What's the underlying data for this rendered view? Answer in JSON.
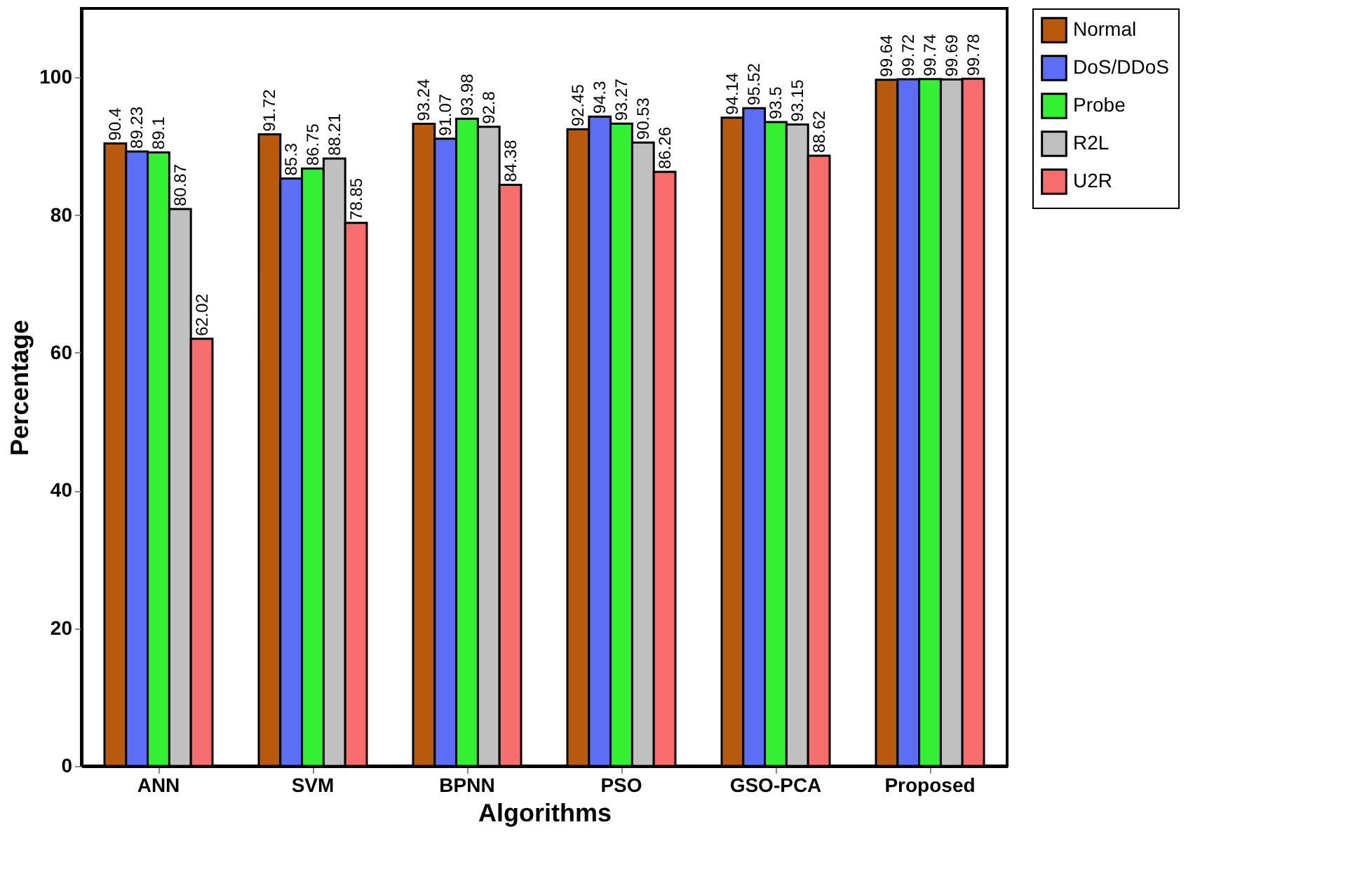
{
  "chart_data": {
    "type": "bar",
    "xlabel": "Algorithms",
    "ylabel": "Percentage",
    "categories": [
      "ANN",
      "SVM",
      "BPNN",
      "PSO",
      "GSO-PCA",
      "Proposed"
    ],
    "series": [
      {
        "name": "Normal",
        "color": "#b85a0d",
        "values": [
          90.4,
          91.72,
          93.24,
          92.45,
          94.14,
          99.64
        ]
      },
      {
        "name": "DoS/DDoS",
        "color": "#5b6ef5",
        "values": [
          89.23,
          85.3,
          91.07,
          94.3,
          95.52,
          99.72
        ]
      },
      {
        "name": "Probe",
        "color": "#33f033",
        "values": [
          89.1,
          86.75,
          93.98,
          93.27,
          93.5,
          99.74
        ]
      },
      {
        "name": "R2L",
        "color": "#c0c0c0",
        "values": [
          80.87,
          88.21,
          92.8,
          90.53,
          93.15,
          99.69
        ]
      },
      {
        "name": "U2R",
        "color": "#f86e6e",
        "values": [
          62.02,
          78.85,
          84.38,
          86.26,
          88.62,
          99.78
        ]
      }
    ],
    "ylim": [
      0,
      110
    ],
    "yticks": [
      0,
      20,
      40,
      60,
      80,
      100
    ],
    "grid": false,
    "legend": "right",
    "data_labels": true
  }
}
